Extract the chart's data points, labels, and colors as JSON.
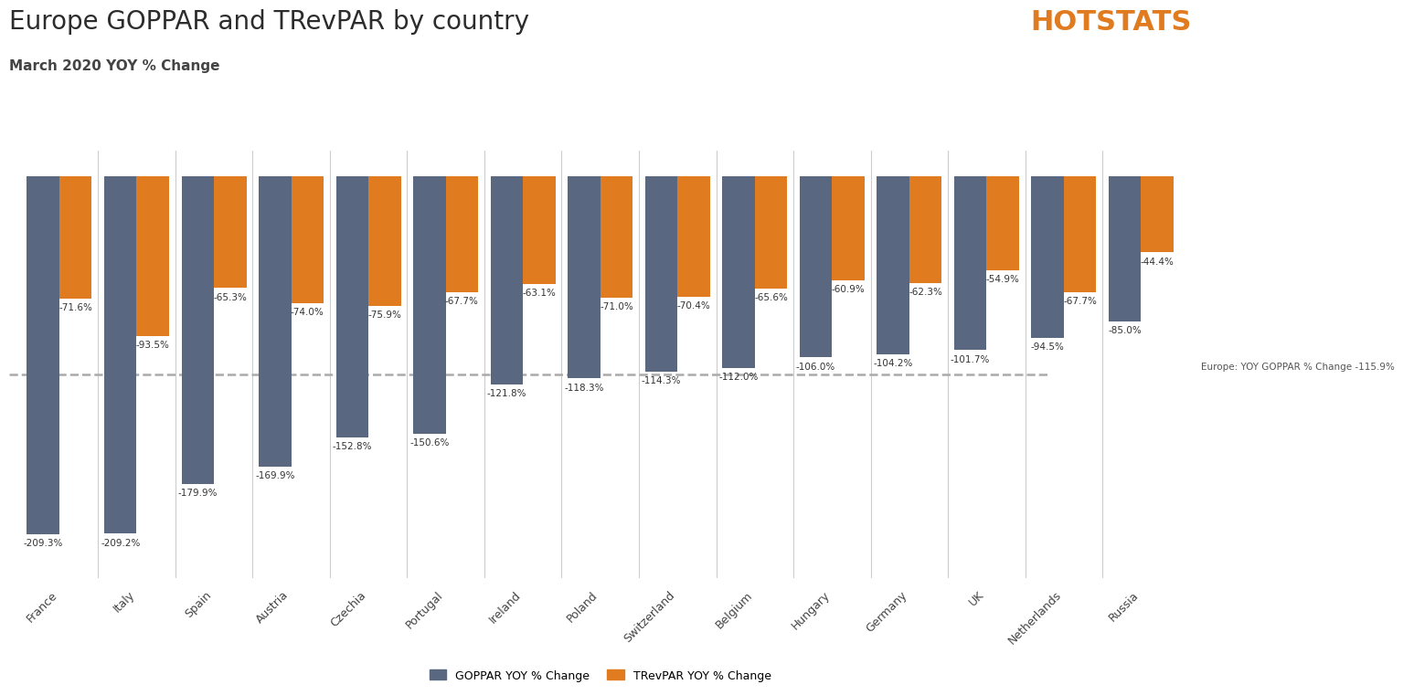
{
  "title": "Europe GOPPAR and TRevPAR by country",
  "subtitle": "March 2020 YOY % Change",
  "categories": [
    "France",
    "Italy",
    "Spain",
    "Austria",
    "Czechia",
    "Portugal",
    "Ireland",
    "Poland",
    "Switzerland",
    "Belgium",
    "Hungary",
    "Germany",
    "UK",
    "Netherlands",
    "Russia"
  ],
  "goppar": [
    -209.3,
    -209.2,
    -179.9,
    -169.9,
    -152.8,
    -150.6,
    -121.8,
    -118.3,
    -114.3,
    -112.0,
    -106.0,
    -104.2,
    -101.7,
    -94.5,
    -85.0
  ],
  "trevpar": [
    -71.6,
    -93.5,
    -65.3,
    -74.0,
    -75.9,
    -67.7,
    -63.1,
    -71.0,
    -70.4,
    -65.6,
    -60.9,
    -62.3,
    -54.9,
    -67.7,
    -44.4
  ],
  "goppar_color": "#596880",
  "trevpar_color": "#e07b20",
  "reference_line": -115.9,
  "reference_label": "Europe: YOY GOPPAR % Change -115.9%",
  "ylim_min": -235,
  "ylim_max": 15,
  "hotstats_text": "HOTSTATS",
  "hotstats_color_main": "#e07b20",
  "legend_goppar": "GOPPAR YOY % Change",
  "legend_trevpar": "TRevPAR YOY % Change",
  "bar_width": 0.42,
  "background_color": "#ffffff",
  "title_fontsize": 20,
  "subtitle_fontsize": 11,
  "label_fontsize": 7.5,
  "tick_fontsize": 9
}
